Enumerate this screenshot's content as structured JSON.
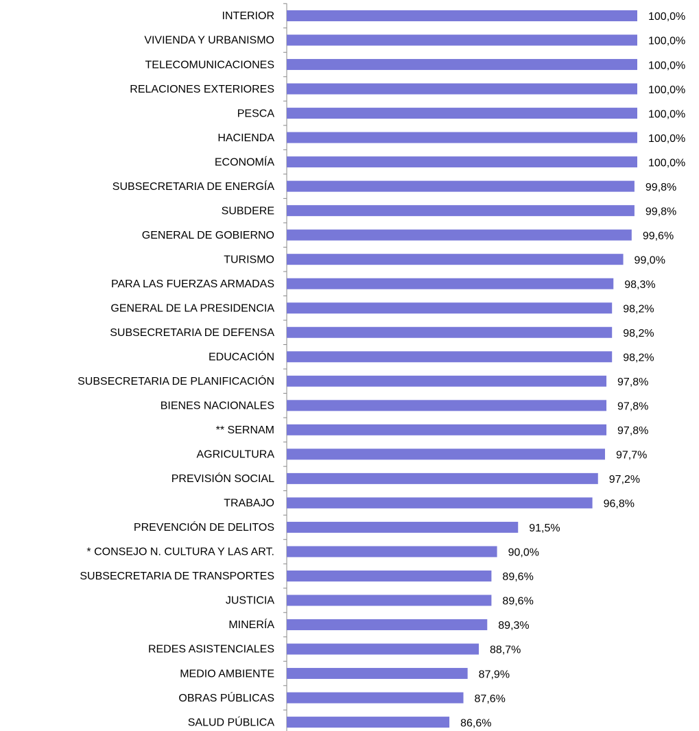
{
  "chart_data": {
    "type": "barh",
    "categories": [
      "INTERIOR",
      "VIVIENDA Y URBANISMO",
      "TELECOMUNICACIONES",
      "RELACIONES EXTERIORES",
      "PESCA",
      "HACIENDA",
      "ECONOMÍA",
      "SUBSECRETARIA DE ENERGÍA",
      "SUBDERE",
      "GENERAL DE GOBIERNO",
      "TURISMO",
      "PARA LAS FUERZAS ARMADAS",
      "GENERAL DE LA PRESIDENCIA",
      "SUBSECRETARIA DE DEFENSA",
      "EDUCACIÓN",
      "SUBSECRETARIA DE PLANIFICACIÓN",
      "BIENES NACIONALES",
      "** SERNAM",
      "AGRICULTURA",
      "PREVISIÓN SOCIAL",
      "TRABAJO",
      "PREVENCIÓN DE DELITOS",
      "* CONSEJO N. CULTURA Y LAS ART.",
      "SUBSECRETARIA DE TRANSPORTES",
      "JUSTICIA",
      "MINERÍA",
      "REDES ASISTENCIALES",
      "MEDIO AMBIENTE",
      "OBRAS PÚBLICAS",
      "SALUD PÚBLICA"
    ],
    "values": [
      100,
      100,
      100,
      100,
      100,
      100,
      100,
      99.8,
      99.8,
      99.6,
      99,
      98.3,
      98.2,
      98.2,
      98.2,
      97.8,
      97.8,
      97.8,
      97.7,
      97.2,
      96.8,
      91.5,
      90,
      89.6,
      89.6,
      89.3,
      88.7,
      87.9,
      87.6,
      86.6
    ],
    "value_labels": [
      "100,0%",
      "100,0%",
      "100,0%",
      "100,0%",
      "100,0%",
      "100,0%",
      "100,0%",
      "99,8%",
      "99,8%",
      "99,6%",
      "99,0%",
      "98,3%",
      "98,2%",
      "98,2%",
      "98,2%",
      "97,8%",
      "97,8%",
      "97,8%",
      "97,7%",
      "97,2%",
      "96,8%",
      "91,5%",
      "90,0%",
      "89,6%",
      "89,6%",
      "89,3%",
      "88,7%",
      "87,9%",
      "87,6%",
      "86,6%"
    ],
    "color": "#7878d8",
    "xlim": [
      75,
      100
    ]
  }
}
